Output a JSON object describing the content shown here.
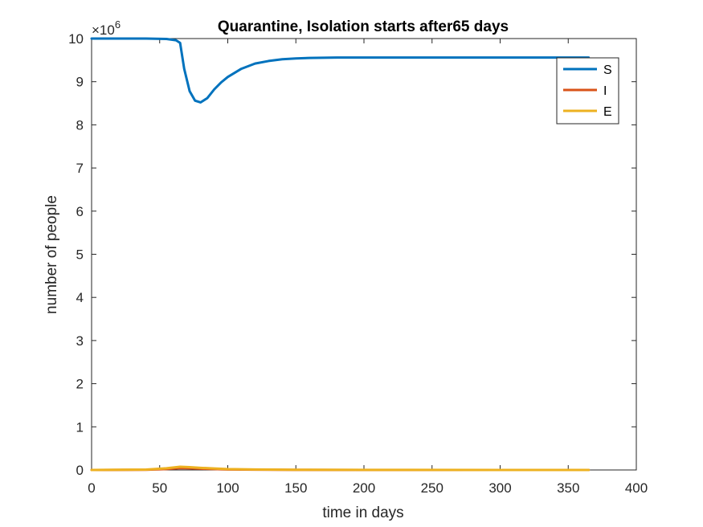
{
  "chart_data": {
    "type": "line",
    "title": "Quarantine, Isolation starts after65   days",
    "xlabel": "time in days",
    "ylabel": "number of people",
    "xlim": [
      0,
      400
    ],
    "ylim": [
      0,
      10
    ],
    "y_exponent": "×10",
    "y_exponent_power": "6",
    "xticks": [
      0,
      50,
      100,
      150,
      200,
      250,
      300,
      350,
      400
    ],
    "xtick_labels": [
      "0",
      "50",
      "100",
      "150",
      "200",
      "250",
      "300",
      "350",
      "400"
    ],
    "yticks": [
      0,
      1,
      2,
      3,
      4,
      5,
      6,
      7,
      8,
      9,
      10
    ],
    "ytick_labels": [
      "0",
      "1",
      "2",
      "3",
      "4",
      "5",
      "6",
      "7",
      "8",
      "9",
      "10"
    ],
    "grid": false,
    "legend_position": "top-right",
    "series": [
      {
        "name": "S",
        "color": "#0072BD",
        "x": [
          0,
          20,
          40,
          55,
          62,
          65,
          68,
          72,
          76,
          80,
          85,
          90,
          95,
          100,
          110,
          120,
          130,
          140,
          150,
          160,
          180,
          200,
          250,
          300,
          365
        ],
        "y": [
          10.0,
          10.0,
          10.0,
          9.99,
          9.96,
          9.9,
          9.3,
          8.78,
          8.56,
          8.52,
          8.62,
          8.82,
          8.98,
          9.11,
          9.3,
          9.42,
          9.48,
          9.52,
          9.54,
          9.55,
          9.56,
          9.56,
          9.56,
          9.56,
          9.56
        ]
      },
      {
        "name": "I",
        "color": "#D95319",
        "x": [
          0,
          40,
          55,
          65,
          72,
          80,
          90,
          100,
          120,
          150,
          200,
          300,
          365
        ],
        "y": [
          0.0,
          0.005,
          0.02,
          0.045,
          0.04,
          0.03,
          0.02,
          0.012,
          0.006,
          0.003,
          0.001,
          0.0,
          0.0
        ]
      },
      {
        "name": "E",
        "color": "#EDB120",
        "x": [
          0,
          40,
          55,
          65,
          72,
          80,
          90,
          100,
          120,
          150,
          200,
          300,
          365
        ],
        "y": [
          0.0,
          0.01,
          0.04,
          0.075,
          0.065,
          0.05,
          0.035,
          0.022,
          0.012,
          0.005,
          0.002,
          0.0,
          0.0
        ]
      }
    ]
  }
}
